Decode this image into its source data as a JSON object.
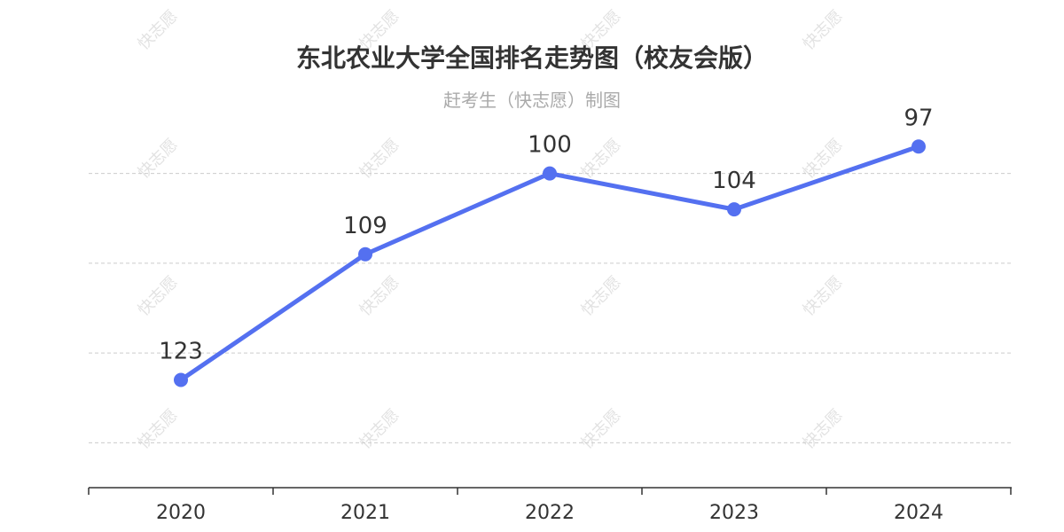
{
  "title": "东北农业大学全国排名走势图（校友会版）",
  "subtitle": "赶考生（快志愿）制图",
  "watermark": "快志愿",
  "colors": {
    "line": "#5470f0",
    "grid": "#cccccc",
    "axis": "#333333",
    "label": "#333333"
  },
  "chart_data": {
    "type": "line",
    "title": "东北农业大学全国排名走势图（校友会版）",
    "subtitle": "赶考生（快志愿）制图",
    "categories": [
      "2020",
      "2021",
      "2022",
      "2023",
      "2024"
    ],
    "series": [
      {
        "values": [
          123,
          109,
          100,
          104,
          97
        ]
      }
    ],
    "y_inverted": true,
    "ylim": [
      95,
      135
    ],
    "grid": true,
    "xlabel": "",
    "ylabel": ""
  }
}
